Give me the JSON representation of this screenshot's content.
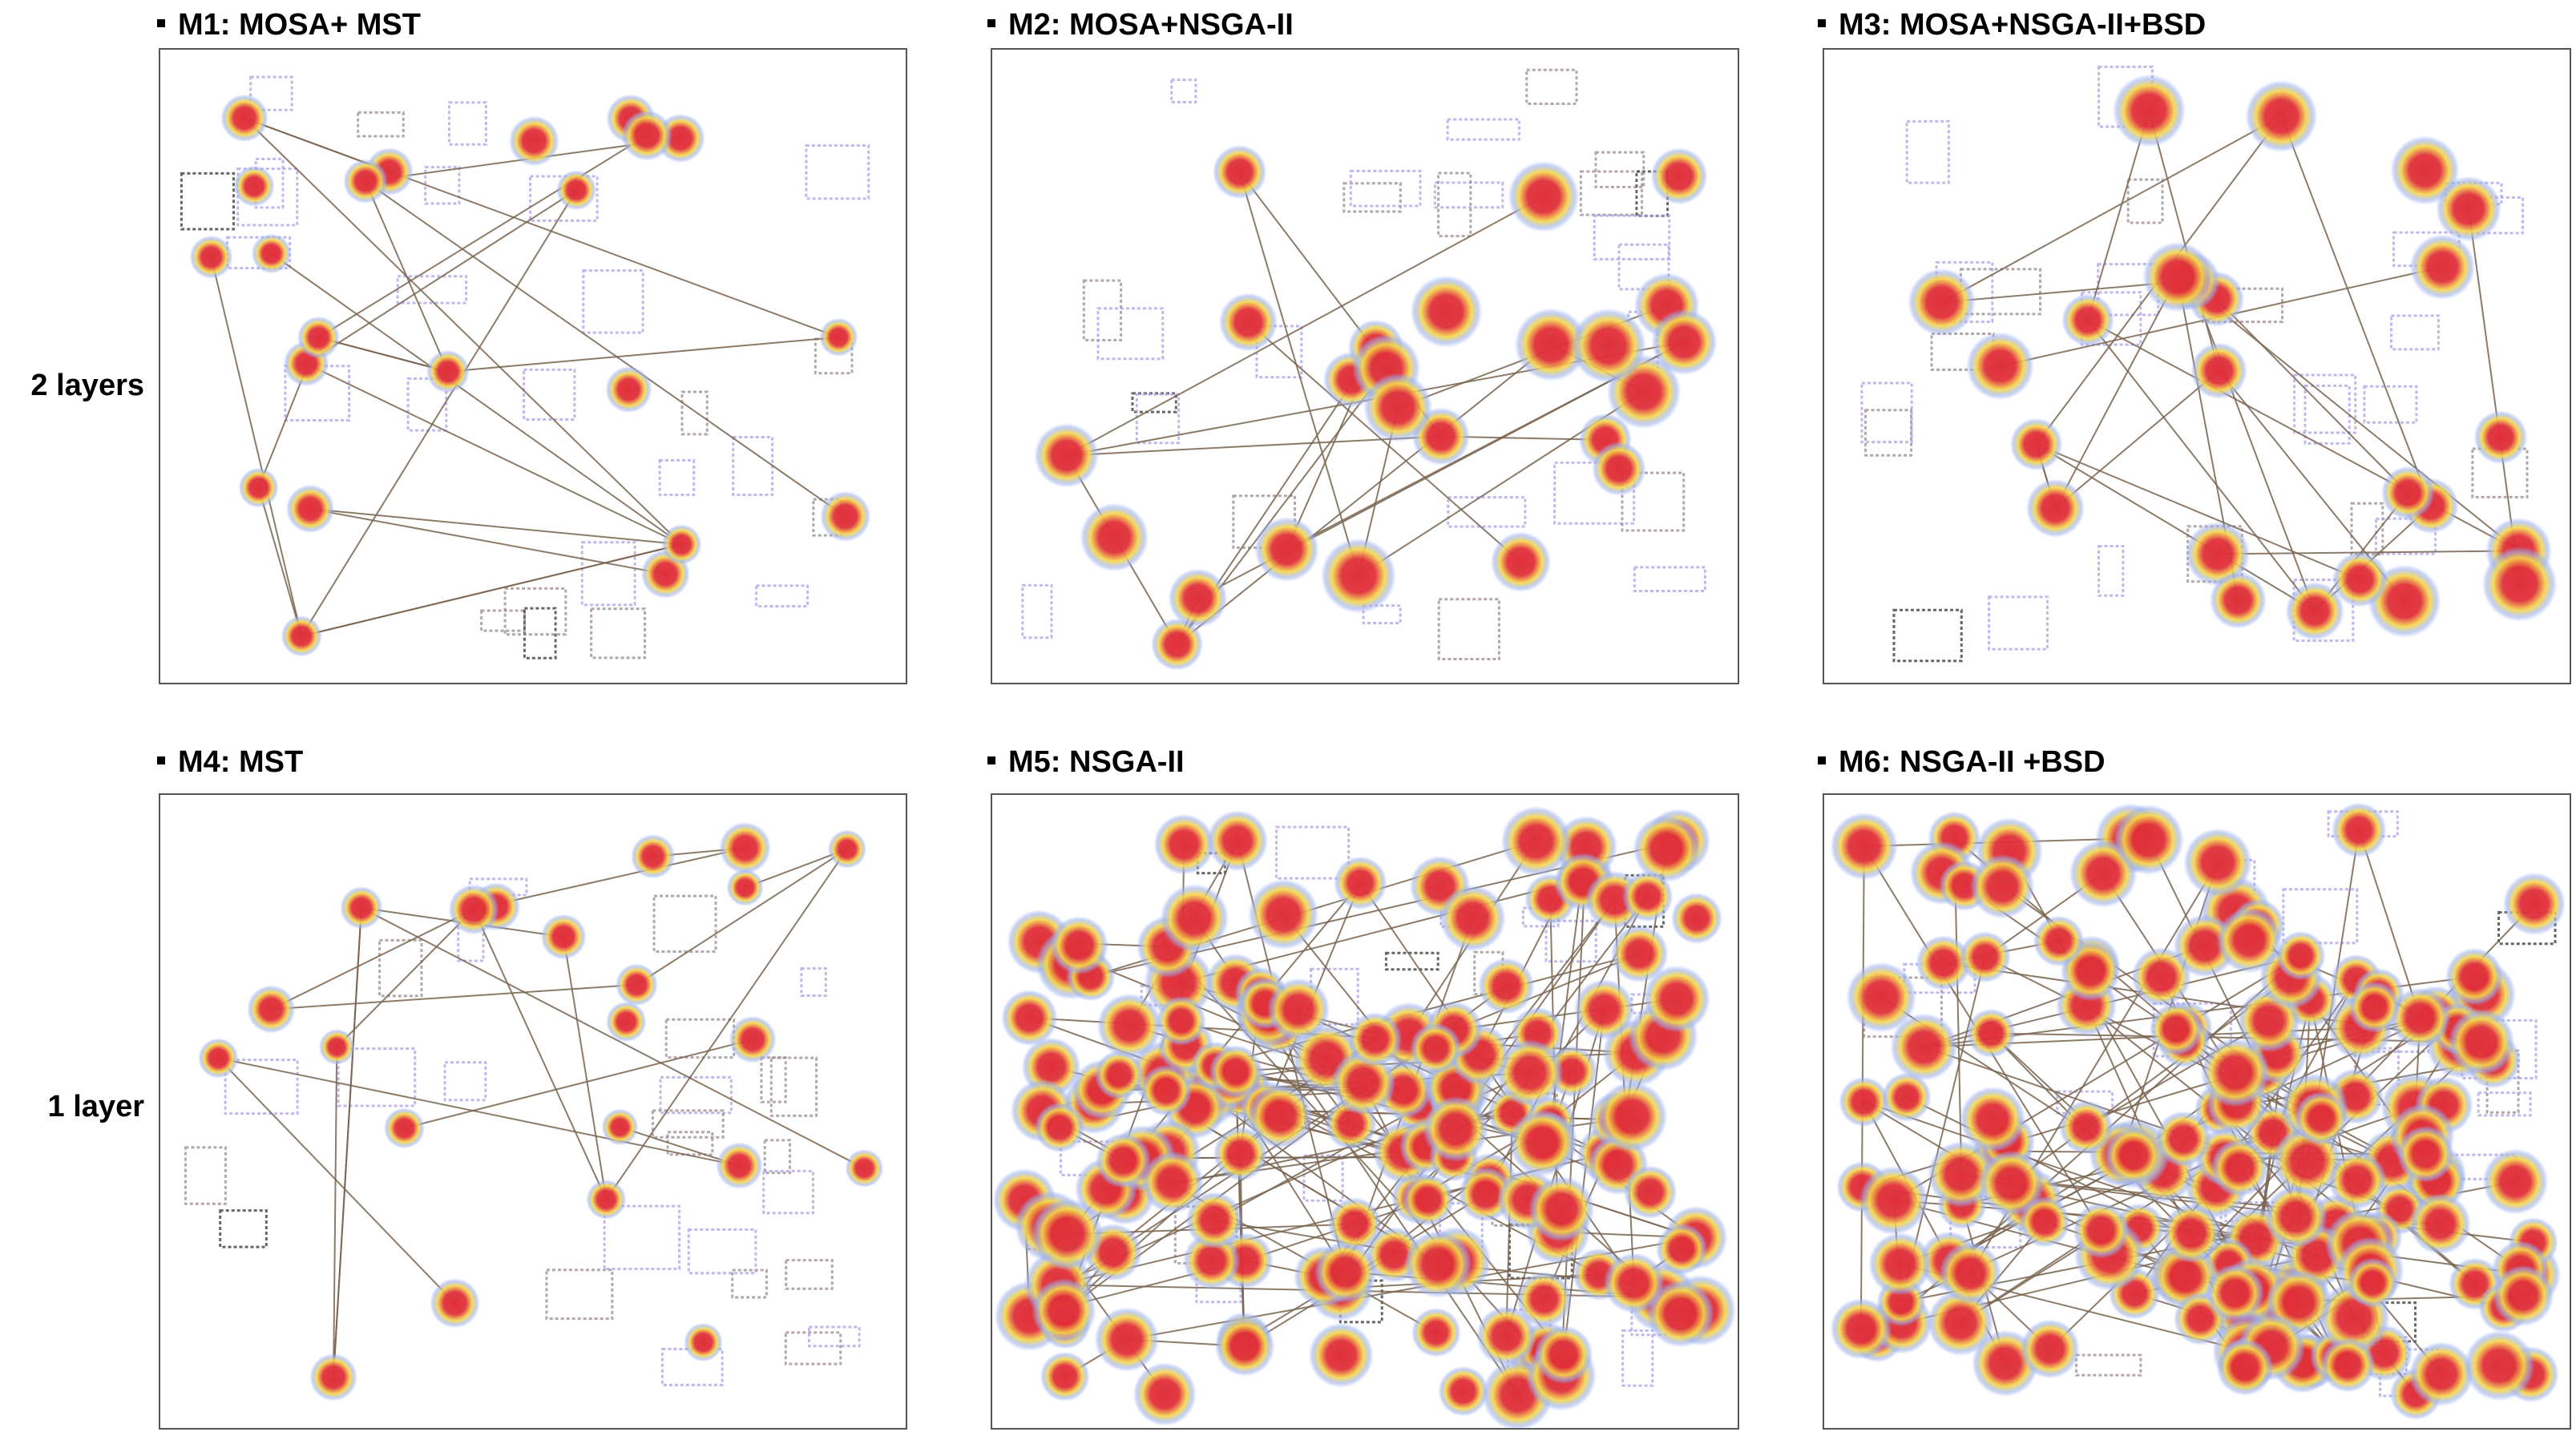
{
  "rows": [
    {
      "label": "2 layers"
    },
    {
      "label": "1 layer"
    }
  ],
  "panels": [
    {
      "id": "m1",
      "title": "M1: MOSA+ MST",
      "density": "low"
    },
    {
      "id": "m2",
      "title": "M2: MOSA+NSGA-II",
      "density": "medium"
    },
    {
      "id": "m3",
      "title": "M3: MOSA+NSGA-II+BSD",
      "density": "medium"
    },
    {
      "id": "m4",
      "title": "M4: MST",
      "density": "low"
    },
    {
      "id": "m5",
      "title": "M5: NSGA-II",
      "density": "high"
    },
    {
      "id": "m6",
      "title": "M6: NSGA-II +BSD",
      "density": "high"
    }
  ],
  "colors": {
    "heat_core": "#e0303a",
    "heat_mid": "#f5d84a",
    "heat_halo": "#9bb0f0",
    "edge": "#7a6450",
    "component_purple": "#a9a0e8",
    "component_brown": "#9a8a8a",
    "component_dark": "#333333"
  }
}
